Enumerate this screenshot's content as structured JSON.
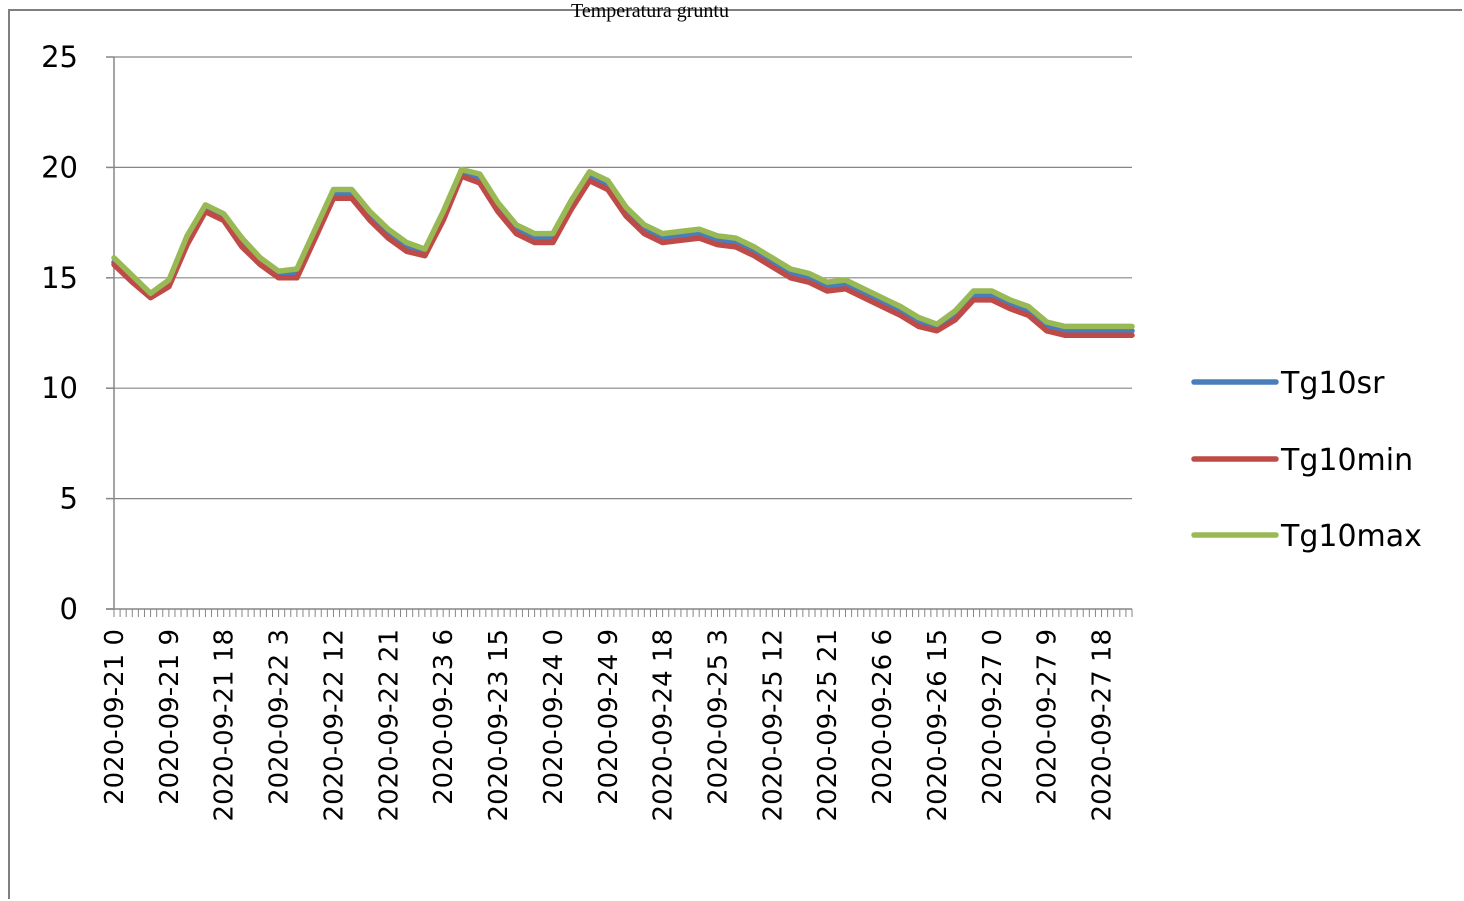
{
  "chart_data": {
    "type": "line",
    "title": "Temperatura gruntu",
    "xlabel": "",
    "ylabel": "",
    "ylim": [
      0,
      25
    ],
    "yticks": [
      0,
      5,
      10,
      15,
      20,
      25
    ],
    "grid": true,
    "legend_position": "right",
    "x_tick_labels": [
      "2020-09-21 0",
      "2020-09-21 9",
      "2020-09-21 18",
      "2020-09-22 3",
      "2020-09-22 12",
      "2020-09-22 21",
      "2020-09-23 6",
      "2020-09-23 15",
      "2020-09-24 0",
      "2020-09-24 9",
      "2020-09-24 18",
      "2020-09-25 3",
      "2020-09-25 12",
      "2020-09-25 21",
      "2020-09-26 6",
      "2020-09-26 15",
      "2020-09-27 0",
      "2020-09-27 9",
      "2020-09-27 18"
    ],
    "x_tick_hours": [
      0,
      9,
      18,
      27,
      36,
      45,
      54,
      63,
      72,
      81,
      90,
      99,
      108,
      117,
      126,
      135,
      144,
      153,
      162
    ],
    "x_range_hours": [
      0,
      167
    ],
    "series": [
      {
        "name": "Tg10sr",
        "color": "#4a7ebb",
        "x": [
          0,
          3,
          6,
          9,
          12,
          15,
          18,
          21,
          24,
          27,
          30,
          33,
          36,
          39,
          42,
          45,
          48,
          51,
          54,
          57,
          60,
          63,
          66,
          69,
          72,
          75,
          78,
          81,
          84,
          87,
          90,
          93,
          96,
          99,
          102,
          105,
          108,
          111,
          114,
          117,
          120,
          123,
          126,
          129,
          132,
          135,
          138,
          141,
          144,
          147,
          150,
          153,
          156,
          159,
          162,
          165,
          167
        ],
        "y": [
          15.7,
          14.9,
          14.2,
          14.7,
          16.7,
          18.2,
          17.8,
          16.6,
          15.8,
          15.2,
          15.2,
          17.0,
          18.8,
          18.8,
          17.8,
          17.0,
          16.4,
          16.2,
          17.8,
          19.8,
          19.5,
          18.2,
          17.2,
          16.8,
          16.8,
          18.3,
          19.6,
          19.2,
          18.0,
          17.2,
          16.8,
          16.9,
          17.0,
          16.7,
          16.6,
          16.2,
          15.7,
          15.2,
          15.0,
          14.6,
          14.7,
          14.3,
          13.9,
          13.5,
          13.0,
          12.8,
          13.3,
          14.2,
          14.2,
          13.8,
          13.5,
          12.8,
          12.6,
          12.6,
          12.6,
          12.6,
          12.6
        ]
      },
      {
        "name": "Tg10min",
        "color": "#be4b48",
        "x": [
          0,
          3,
          6,
          9,
          12,
          15,
          18,
          21,
          24,
          27,
          30,
          33,
          36,
          39,
          42,
          45,
          48,
          51,
          54,
          57,
          60,
          63,
          66,
          69,
          72,
          75,
          78,
          81,
          84,
          87,
          90,
          93,
          96,
          99,
          102,
          105,
          108,
          111,
          114,
          117,
          120,
          123,
          126,
          129,
          132,
          135,
          138,
          141,
          144,
          147,
          150,
          153,
          156,
          159,
          162,
          165,
          167
        ],
        "y": [
          15.6,
          14.8,
          14.1,
          14.6,
          16.5,
          18.0,
          17.6,
          16.4,
          15.6,
          15.0,
          15.0,
          16.8,
          18.6,
          18.6,
          17.6,
          16.8,
          16.2,
          16.0,
          17.6,
          19.6,
          19.3,
          18.0,
          17.0,
          16.6,
          16.6,
          18.1,
          19.4,
          19.0,
          17.8,
          17.0,
          16.6,
          16.7,
          16.8,
          16.5,
          16.4,
          16.0,
          15.5,
          15.0,
          14.8,
          14.4,
          14.5,
          14.1,
          13.7,
          13.3,
          12.8,
          12.6,
          13.1,
          14.0,
          14.0,
          13.6,
          13.3,
          12.6,
          12.4,
          12.4,
          12.4,
          12.4,
          12.4
        ]
      },
      {
        "name": "Tg10max",
        "color": "#98b954",
        "x": [
          0,
          3,
          6,
          9,
          12,
          15,
          18,
          21,
          24,
          27,
          30,
          33,
          36,
          39,
          42,
          45,
          48,
          51,
          54,
          57,
          60,
          63,
          66,
          69,
          72,
          75,
          78,
          81,
          84,
          87,
          90,
          93,
          96,
          99,
          102,
          105,
          108,
          111,
          114,
          117,
          120,
          123,
          126,
          129,
          132,
          135,
          138,
          141,
          144,
          147,
          150,
          153,
          156,
          159,
          162,
          165,
          167
        ],
        "y": [
          15.9,
          15.1,
          14.3,
          14.9,
          16.9,
          18.3,
          17.9,
          16.8,
          15.9,
          15.3,
          15.4,
          17.2,
          19.0,
          19.0,
          18.0,
          17.2,
          16.6,
          16.3,
          18.0,
          19.9,
          19.7,
          18.4,
          17.4,
          17.0,
          17.0,
          18.5,
          19.8,
          19.4,
          18.2,
          17.4,
          17.0,
          17.1,
          17.2,
          16.9,
          16.8,
          16.4,
          15.9,
          15.4,
          15.2,
          14.8,
          14.9,
          14.5,
          14.1,
          13.7,
          13.2,
          12.9,
          13.5,
          14.4,
          14.4,
          14.0,
          13.7,
          13.0,
          12.8,
          12.8,
          12.8,
          12.8,
          12.8
        ]
      }
    ]
  }
}
